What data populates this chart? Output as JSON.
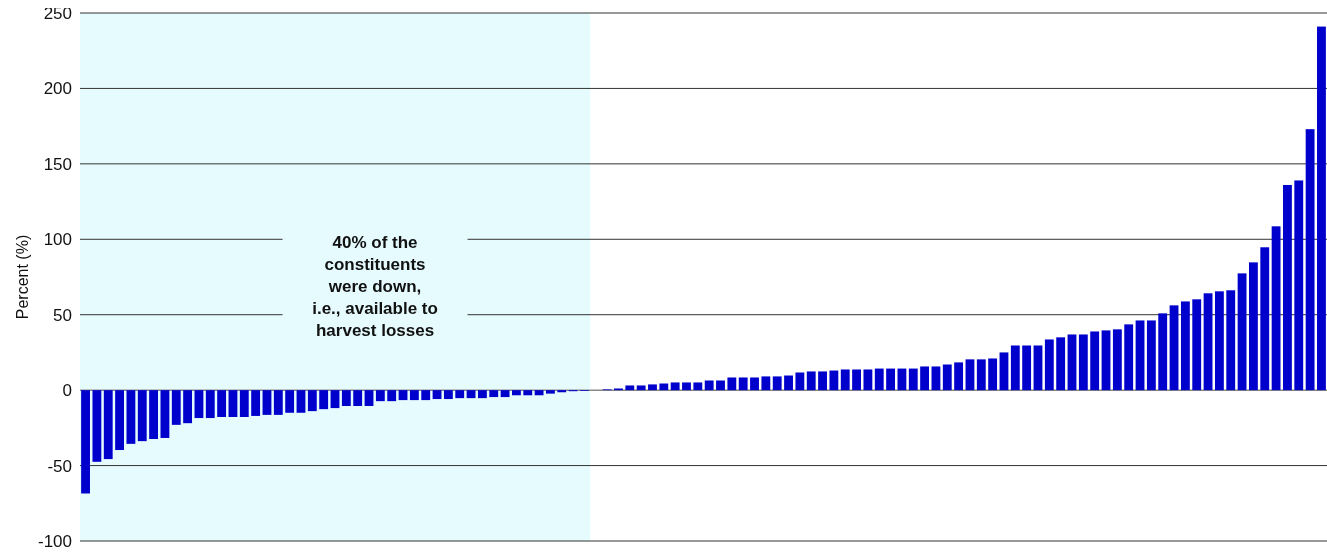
{
  "chart_data": {
    "type": "bar",
    "ylabel": "Percent (%)",
    "categories": [
      null,
      null,
      null,
      null,
      null,
      null,
      null,
      null,
      null,
      null,
      null,
      null,
      null,
      null,
      null,
      null,
      null,
      null,
      null,
      null,
      null,
      null,
      null,
      null,
      null,
      null,
      null,
      null,
      null,
      null,
      null,
      null,
      null,
      null,
      null,
      null,
      null,
      null,
      null,
      null,
      null,
      null,
      null,
      null,
      null,
      null,
      null,
      null,
      null,
      null,
      null,
      null,
      null,
      null,
      null,
      null,
      null,
      null,
      null,
      null,
      null,
      null,
      null,
      null,
      null,
      null,
      null,
      null,
      null,
      null,
      null,
      null,
      null,
      null,
      null,
      null,
      null,
      null,
      null,
      null,
      null,
      null,
      null,
      null,
      null,
      null,
      null,
      null,
      null,
      null,
      null,
      null,
      null,
      null,
      null,
      null,
      null,
      null,
      null,
      null,
      null,
      null,
      null,
      null,
      null,
      null,
      null,
      null,
      null,
      null
    ],
    "values": [
      -68.5,
      -47.5,
      -45.7,
      -39.7,
      -35.6,
      -33.8,
      -32.4,
      -31.7,
      -23,
      -21.9,
      -18.5,
      -18.5,
      -17.8,
      -17.8,
      -17.8,
      -17.1,
      -16.4,
      -16.4,
      -15,
      -15,
      -13.9,
      -12.6,
      -11.9,
      -10.5,
      -10.5,
      -10.5,
      -7.3,
      -7.3,
      -6.6,
      -6.6,
      -6.6,
      -5.9,
      -5.9,
      -5.3,
      -5.3,
      -5.3,
      -4.6,
      -4.6,
      -3.4,
      -3.4,
      -3.4,
      -2.3,
      -1.4,
      -0.7,
      -0.5,
      0,
      0.5,
      1.1,
      3.1,
      3.1,
      3.8,
      4.4,
      5.1,
      5.1,
      5.1,
      6.4,
      6.4,
      8.4,
      8.4,
      8.4,
      9.1,
      9.1,
      9.7,
      11.7,
      12.4,
      12.4,
      13,
      13.7,
      13.7,
      13.7,
      14.3,
      14.3,
      14.3,
      14.3,
      15.7,
      15.7,
      17,
      18.4,
      20.4,
      20.4,
      21,
      25,
      29.6,
      29.6,
      29.6,
      33.6,
      35,
      36.9,
      36.9,
      38.9,
      39.6,
      40.3,
      43.6,
      46.2,
      46.2,
      50.9,
      56.2,
      58.8,
      60.2,
      64.2,
      65.5,
      66.2,
      77.4,
      84.7,
      94.7,
      108.6,
      136,
      139,
      173,
      241
    ],
    "color": "#0000cc",
    "ylim": [
      -100,
      250
    ],
    "yticks": [
      -100,
      -50,
      0,
      50,
      100,
      150,
      200,
      250
    ],
    "grid": "y",
    "annotations": [
      "40% of the\nconstituents\nwere down,\ni.e., available to\nharvest losses"
    ]
  }
}
